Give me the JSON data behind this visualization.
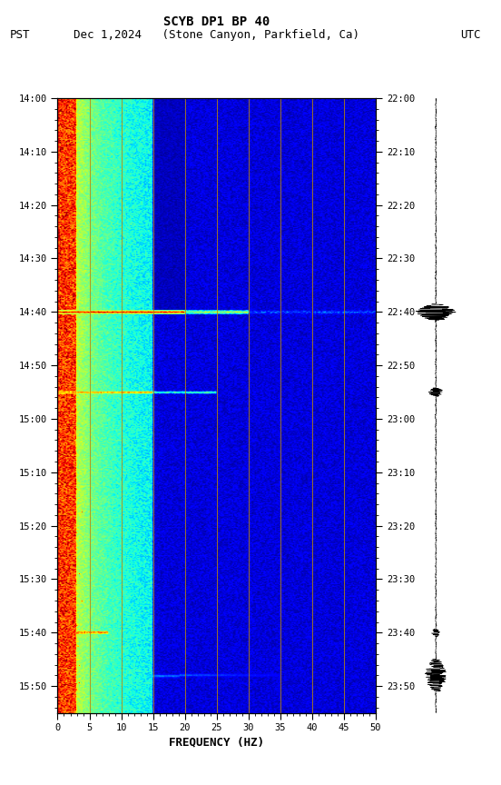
{
  "title_line1": "SCYB DP1 BP 40",
  "title_line2_left": "PST",
  "title_line2_mid": "Dec 1,2024   (Stone Canyon, Parkfield, Ca)",
  "title_line2_right": "UTC",
  "xlabel": "FREQUENCY (HZ)",
  "freq_min": 0,
  "freq_max": 50,
  "pst_ticks": [
    "14:00",
    "14:10",
    "14:20",
    "14:30",
    "14:40",
    "14:50",
    "15:00",
    "15:10",
    "15:20",
    "15:30",
    "15:40",
    "15:50"
  ],
  "utc_ticks": [
    "22:00",
    "22:10",
    "22:20",
    "22:30",
    "22:40",
    "22:50",
    "23:00",
    "23:10",
    "23:20",
    "23:30",
    "23:40",
    "23:50"
  ],
  "freq_ticks": [
    0,
    5,
    10,
    15,
    20,
    25,
    30,
    35,
    40,
    45,
    50
  ],
  "vert_lines_freq": [
    5,
    10,
    15,
    20,
    25,
    30,
    35,
    40,
    45
  ],
  "background_color": "#ffffff",
  "colormap": "jet",
  "fig_width": 5.52,
  "fig_height": 8.64,
  "dpi": 100,
  "n_time": 720,
  "n_freq": 250,
  "total_minutes": 115
}
